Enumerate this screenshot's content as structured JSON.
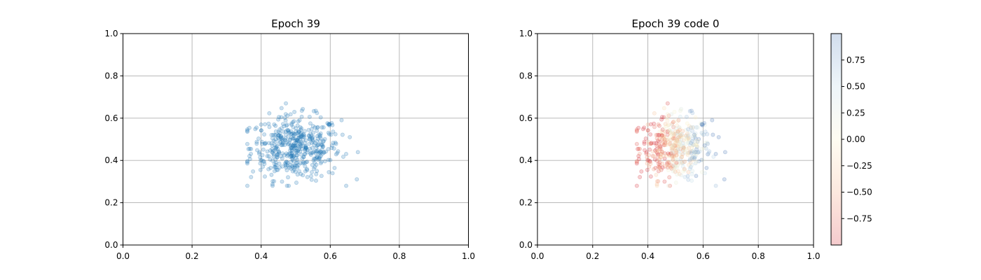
{
  "chart_data": [
    {
      "type": "scatter",
      "title": "Epoch 39",
      "xlim": [
        0,
        1
      ],
      "ylim": [
        0,
        1
      ],
      "xticks": [
        "0.0",
        "0.2",
        "0.4",
        "0.6",
        "0.8",
        "1.0"
      ],
      "yticks": [
        "0.0",
        "0.2",
        "0.4",
        "0.6",
        "0.8",
        "1.0"
      ],
      "grid": true,
      "point_color": "#1f77b4",
      "point_alpha": 0.22,
      "distribution": {
        "count": 480,
        "center": [
          0.5,
          0.46
        ],
        "std": [
          0.065,
          0.075
        ],
        "x_range": [
          0.36,
          0.68
        ],
        "y_range": [
          0.28,
          0.67
        ]
      }
    },
    {
      "type": "scatter",
      "title": "Epoch 39 code 0",
      "xlim": [
        0,
        1
      ],
      "ylim": [
        0,
        1
      ],
      "xticks": [
        "0.0",
        "0.2",
        "0.4",
        "0.6",
        "0.8",
        "1.0"
      ],
      "yticks": [
        "0.0",
        "0.2",
        "0.4",
        "0.6",
        "0.8",
        "1.0"
      ],
      "grid": true,
      "colormap": "RdYlBu-like (red = -1, cream = 0, blue = +1)",
      "point_alpha": 0.22,
      "color_trend": "red on left side, blue/light toward right",
      "colorbar": {
        "range": [
          -1,
          1
        ],
        "ticks": [
          "0.75",
          "0.50",
          "0.25",
          "0.00",
          "−0.25",
          "−0.50",
          "−0.75"
        ],
        "tick_values": [
          0.75,
          0.5,
          0.25,
          0.0,
          -0.25,
          -0.5,
          -0.75
        ]
      }
    }
  ]
}
